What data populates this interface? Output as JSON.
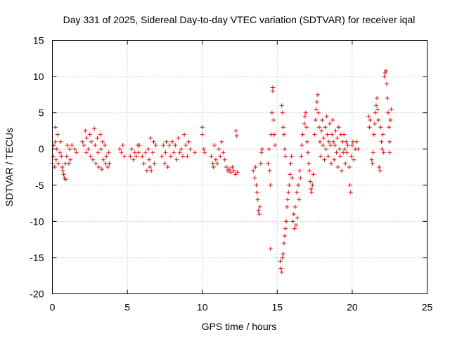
{
  "chart_data": {
    "type": "scatter",
    "title": "Day 331 of 2025, Sidereal Day-to-day VTEC variation (SDTVAR) for receiver iqal",
    "xlabel": "GPS time / hours",
    "ylabel": "SDTVAR / TECUs",
    "xlim": [
      0,
      25
    ],
    "ylim": [
      -20,
      15
    ],
    "xticks": [
      0,
      5,
      10,
      15,
      20,
      25
    ],
    "yticks": [
      -20,
      -15,
      -10,
      -5,
      0,
      5,
      10,
      15
    ],
    "grid": true,
    "marker": "+",
    "color": "#ff0000",
    "series": [
      {
        "name": "SDTVAR",
        "points": [
          [
            0.0,
            -2.0
          ],
          [
            0.05,
            -1.0
          ],
          [
            0.1,
            0.5
          ],
          [
            0.15,
            -2.5
          ],
          [
            0.2,
            1.0
          ],
          [
            0.2,
            3.0
          ],
          [
            0.25,
            -1.5
          ],
          [
            0.3,
            0.0
          ],
          [
            0.35,
            2.0
          ],
          [
            0.4,
            -2.0
          ],
          [
            0.5,
            -0.5
          ],
          [
            0.55,
            1.0
          ],
          [
            0.6,
            -1.0
          ],
          [
            0.65,
            -2.5
          ],
          [
            0.7,
            -3.0
          ],
          [
            0.75,
            -3.5
          ],
          [
            0.8,
            -4.0
          ],
          [
            0.85,
            -2.0
          ],
          [
            0.9,
            -4.2
          ],
          [
            0.95,
            -1.0
          ],
          [
            1.0,
            0.5
          ],
          [
            1.1,
            -2.0
          ],
          [
            1.15,
            0.0
          ],
          [
            1.2,
            -1.5
          ],
          [
            1.3,
            0.5
          ],
          [
            1.5,
            0.0
          ],
          [
            1.6,
            -0.5
          ],
          [
            2.0,
            1.0
          ],
          [
            2.1,
            0.5
          ],
          [
            2.2,
            2.5
          ],
          [
            2.25,
            -0.5
          ],
          [
            2.3,
            1.5
          ],
          [
            2.4,
            0.0
          ],
          [
            2.5,
            2.0
          ],
          [
            2.55,
            -1.0
          ],
          [
            2.6,
            1.0
          ],
          [
            2.7,
            -1.5
          ],
          [
            2.8,
            2.8
          ],
          [
            2.85,
            0.5
          ],
          [
            2.9,
            -2.0
          ],
          [
            3.0,
            1.5
          ],
          [
            3.05,
            -0.5
          ],
          [
            3.1,
            -2.5
          ],
          [
            3.2,
            2.0
          ],
          [
            3.25,
            0.0
          ],
          [
            3.3,
            -2.8
          ],
          [
            3.35,
            1.0
          ],
          [
            3.4,
            -1.5
          ],
          [
            3.5,
            0.5
          ],
          [
            3.55,
            -2.0
          ],
          [
            3.6,
            -1.0
          ],
          [
            3.7,
            -2.5
          ],
          [
            3.75,
            -0.5
          ],
          [
            3.8,
            -2.0
          ],
          [
            4.5,
            0.0
          ],
          [
            4.6,
            -0.5
          ],
          [
            4.7,
            0.5
          ],
          [
            4.8,
            -1.0
          ],
          [
            5.2,
            -1.0
          ],
          [
            5.3,
            0.0
          ],
          [
            5.4,
            -1.5
          ],
          [
            5.5,
            -0.5
          ],
          [
            5.6,
            -1.0
          ],
          [
            5.7,
            0.5
          ],
          [
            5.75,
            -0.5
          ],
          [
            5.8,
            0.5
          ],
          [
            6.0,
            -1.0
          ],
          [
            6.1,
            -2.0
          ],
          [
            6.2,
            -0.5
          ],
          [
            6.3,
            -3.0
          ],
          [
            6.4,
            0.0
          ],
          [
            6.45,
            -1.5
          ],
          [
            6.5,
            -2.5
          ],
          [
            6.55,
            1.5
          ],
          [
            6.6,
            -3.0
          ],
          [
            6.7,
            -0.5
          ],
          [
            6.75,
            1.0
          ],
          [
            6.8,
            -2.0
          ],
          [
            6.9,
            0.5
          ],
          [
            7.3,
            -1.0
          ],
          [
            7.4,
            0.5
          ],
          [
            7.5,
            -2.0
          ],
          [
            7.55,
            -0.5
          ],
          [
            7.6,
            1.0
          ],
          [
            7.7,
            -2.5
          ],
          [
            7.8,
            0.5
          ],
          [
            7.9,
            -1.0
          ],
          [
            8.0,
            1.0
          ],
          [
            8.1,
            -0.5
          ],
          [
            8.2,
            0.5
          ],
          [
            8.3,
            -1.5
          ],
          [
            8.4,
            1.5
          ],
          [
            8.5,
            -0.5
          ],
          [
            8.6,
            0.0
          ],
          [
            8.7,
            -1.0
          ],
          [
            8.8,
            2.0
          ],
          [
            8.9,
            0.5
          ],
          [
            9.0,
            -1.0
          ],
          [
            9.1,
            1.0
          ],
          [
            9.2,
            0.0
          ],
          [
            9.5,
            -0.5
          ],
          [
            10.0,
            3.0
          ],
          [
            10.0,
            2.0
          ],
          [
            10.1,
            0.0
          ],
          [
            10.15,
            -0.5
          ],
          [
            10.6,
            -1.0
          ],
          [
            10.7,
            -2.0
          ],
          [
            10.75,
            -2.5
          ],
          [
            10.8,
            0.5
          ],
          [
            10.9,
            -1.5
          ],
          [
            11.0,
            -2.0
          ],
          [
            11.1,
            0.0
          ],
          [
            11.2,
            -1.0
          ],
          [
            11.3,
            1.0
          ],
          [
            11.4,
            -0.5
          ],
          [
            11.5,
            -1.5
          ],
          [
            11.6,
            -2.5
          ],
          [
            11.7,
            -3.0
          ],
          [
            11.8,
            -2.8
          ],
          [
            11.9,
            -3.2
          ],
          [
            12.0,
            -2.5
          ],
          [
            12.1,
            -3.0
          ],
          [
            12.2,
            -3.5
          ],
          [
            12.25,
            2.5
          ],
          [
            12.3,
            1.8
          ],
          [
            12.35,
            -3.2
          ],
          [
            13.4,
            -3.0
          ],
          [
            13.5,
            -4.0
          ],
          [
            13.55,
            -2.5
          ],
          [
            13.6,
            -5.0
          ],
          [
            13.65,
            -6.0
          ],
          [
            13.7,
            -7.0
          ],
          [
            13.75,
            -8.5
          ],
          [
            13.8,
            -9.0
          ],
          [
            13.85,
            -8.0
          ],
          [
            13.9,
            -2.0
          ],
          [
            13.95,
            -0.5
          ],
          [
            14.0,
            0.0
          ],
          [
            14.4,
            -2.0
          ],
          [
            14.45,
            0.0
          ],
          [
            14.5,
            -3.0
          ],
          [
            14.55,
            -5.0
          ],
          [
            14.6,
            2.0
          ],
          [
            14.65,
            5.0
          ],
          [
            14.7,
            8.0
          ],
          [
            14.7,
            8.5
          ],
          [
            14.75,
            4.0
          ],
          [
            14.8,
            2.0
          ],
          [
            14.85,
            0.5
          ],
          [
            14.55,
            -13.8
          ],
          [
            15.2,
            -15.5
          ],
          [
            15.25,
            -16.5
          ],
          [
            15.3,
            -17.0
          ],
          [
            15.35,
            -15.0
          ],
          [
            15.4,
            -14.5
          ],
          [
            15.45,
            -13.0
          ],
          [
            15.5,
            -12.0
          ],
          [
            15.55,
            -11.0
          ],
          [
            15.6,
            -10.0
          ],
          [
            15.65,
            -8.0
          ],
          [
            15.7,
            -7.0
          ],
          [
            15.75,
            -6.0
          ],
          [
            15.8,
            -5.0
          ],
          [
            15.85,
            -3.5
          ],
          [
            15.9,
            -2.0
          ],
          [
            15.95,
            -1.0
          ],
          [
            16.0,
            -4.0
          ],
          [
            16.05,
            -10.0
          ],
          [
            16.1,
            -9.0
          ],
          [
            16.15,
            -11.0
          ],
          [
            16.2,
            -8.0
          ],
          [
            16.25,
            -10.5
          ],
          [
            16.3,
            -6.0
          ],
          [
            16.35,
            -9.5
          ],
          [
            16.4,
            -5.0
          ],
          [
            16.45,
            -7.0
          ],
          [
            16.5,
            -3.0
          ],
          [
            16.55,
            -4.0
          ],
          [
            16.6,
            -1.0
          ],
          [
            16.65,
            0.5
          ],
          [
            16.7,
            2.0
          ],
          [
            15.3,
            6.0
          ],
          [
            15.35,
            5.0
          ],
          [
            15.4,
            3.0
          ],
          [
            15.45,
            2.0
          ],
          [
            15.5,
            0.0
          ],
          [
            15.55,
            -1.0
          ],
          [
            16.8,
            3.5
          ],
          [
            16.85,
            4.5
          ],
          [
            16.9,
            5.0
          ],
          [
            16.95,
            3.0
          ],
          [
            17.0,
            1.0
          ],
          [
            17.05,
            -0.5
          ],
          [
            17.1,
            -2.0
          ],
          [
            17.15,
            -3.0
          ],
          [
            17.2,
            -4.5
          ],
          [
            17.25,
            -5.5
          ],
          [
            17.3,
            -6.0
          ],
          [
            17.35,
            -5.0
          ],
          [
            17.4,
            -3.5
          ],
          [
            17.5,
            2.0
          ],
          [
            17.55,
            4.0
          ],
          [
            17.6,
            5.5
          ],
          [
            17.65,
            6.5
          ],
          [
            17.7,
            7.5
          ],
          [
            17.75,
            5.0
          ],
          [
            17.8,
            3.0
          ],
          [
            17.85,
            1.0
          ],
          [
            17.9,
            -1.0
          ],
          [
            17.95,
            2.5
          ],
          [
            18.0,
            4.0
          ],
          [
            18.05,
            0.5
          ],
          [
            18.1,
            1.5
          ],
          [
            18.15,
            -1.5
          ],
          [
            18.2,
            3.0
          ],
          [
            18.25,
            0.0
          ],
          [
            18.3,
            4.5
          ],
          [
            18.35,
            2.0
          ],
          [
            18.4,
            -1.0
          ],
          [
            18.45,
            1.0
          ],
          [
            18.5,
            3.5
          ],
          [
            18.55,
            0.5
          ],
          [
            18.6,
            -2.0
          ],
          [
            18.65,
            2.0
          ],
          [
            18.7,
            4.0
          ],
          [
            18.75,
            1.0
          ],
          [
            18.8,
            -1.5
          ],
          [
            18.85,
            0.5
          ],
          [
            18.9,
            2.5
          ],
          [
            18.95,
            -0.5
          ],
          [
            19.0,
            1.5
          ],
          [
            19.05,
            -2.5
          ],
          [
            19.1,
            3.0
          ],
          [
            19.15,
            0.0
          ],
          [
            19.2,
            -1.0
          ],
          [
            19.25,
            2.0
          ],
          [
            19.3,
            -3.0
          ],
          [
            19.35,
            1.0
          ],
          [
            19.4,
            -0.5
          ],
          [
            19.45,
            2.0
          ],
          [
            19.5,
            0.0
          ],
          [
            19.55,
            -2.0
          ],
          [
            19.6,
            1.0
          ],
          [
            19.65,
            -0.5
          ],
          [
            19.7,
            0.5
          ],
          [
            19.8,
            -2.5
          ],
          [
            19.85,
            -5.0
          ],
          [
            19.9,
            -6.0
          ],
          [
            19.95,
            -1.0
          ],
          [
            20.0,
            0.5
          ],
          [
            20.05,
            1.0
          ],
          [
            20.1,
            -1.5
          ],
          [
            20.2,
            0.0
          ],
          [
            20.3,
            1.0
          ],
          [
            20.4,
            0.0
          ],
          [
            21.1,
            4.5
          ],
          [
            21.15,
            3.0
          ],
          [
            21.2,
            4.0
          ],
          [
            21.3,
            -1.5
          ],
          [
            21.35,
            -2.0
          ],
          [
            21.4,
            -0.5
          ],
          [
            21.45,
            2.0
          ],
          [
            21.5,
            3.5
          ],
          [
            21.55,
            5.0
          ],
          [
            21.6,
            6.0
          ],
          [
            21.65,
            7.0
          ],
          [
            21.7,
            5.5
          ],
          [
            21.75,
            4.0
          ],
          [
            21.8,
            -2.5
          ],
          [
            21.85,
            -3.0
          ],
          [
            21.9,
            3.0
          ],
          [
            21.95,
            1.0
          ],
          [
            22.0,
            0.0
          ],
          [
            22.05,
            2.0
          ],
          [
            22.1,
            -0.5
          ],
          [
            22.15,
            10.0
          ],
          [
            22.2,
            10.5
          ],
          [
            22.25,
            10.8
          ],
          [
            22.3,
            9.0
          ],
          [
            22.35,
            7.0
          ],
          [
            22.4,
            5.0
          ],
          [
            22.45,
            3.0
          ],
          [
            22.5,
            1.0
          ],
          [
            22.55,
            4.0
          ],
          [
            22.6,
            5.5
          ],
          [
            22.5,
            -0.5
          ]
        ]
      }
    ]
  }
}
